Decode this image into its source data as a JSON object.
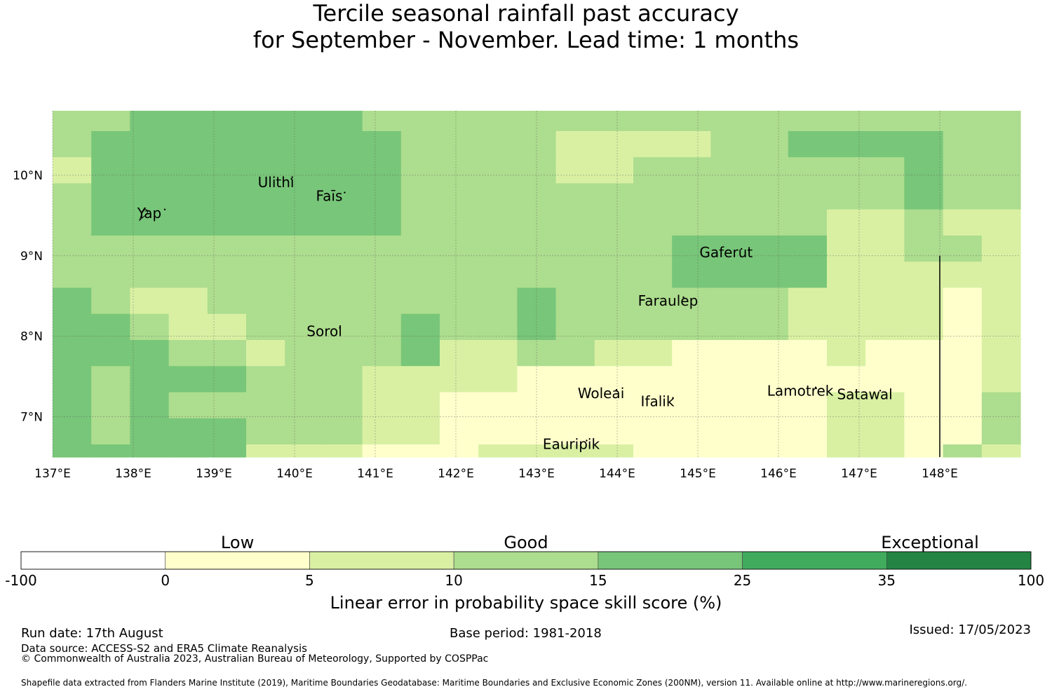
{
  "title": {
    "line1": "Tercile seasonal rainfall past accuracy",
    "line2": "for September - November. Lead time: 1 months"
  },
  "map": {
    "lon_range": [
      137,
      149
    ],
    "lat_range": [
      6.5,
      10.8
    ],
    "x_ticks": [
      {
        "value": 137,
        "label": "137°E"
      },
      {
        "value": 138,
        "label": "138°E"
      },
      {
        "value": 139,
        "label": "139°E"
      },
      {
        "value": 140,
        "label": "140°E"
      },
      {
        "value": 141,
        "label": "141°E"
      },
      {
        "value": 142,
        "label": "142°E"
      },
      {
        "value": 143,
        "label": "143°E"
      },
      {
        "value": 144,
        "label": "144°E"
      },
      {
        "value": 145,
        "label": "145°E"
      },
      {
        "value": 146,
        "label": "146°E"
      },
      {
        "value": 147,
        "label": "147°E"
      },
      {
        "value": 148,
        "label": "148°E"
      }
    ],
    "y_ticks": [
      {
        "value": 10,
        "label": "10°N"
      },
      {
        "value": 9,
        "label": "9°N"
      },
      {
        "value": 8,
        "label": "8°N"
      },
      {
        "value": 7,
        "label": "7°N"
      }
    ],
    "grid": true,
    "class_colors": [
      "#ffffcc",
      "#d9f0a3",
      "#addd8e",
      "#78c679"
    ],
    "grid_rows": [
      "2233333322222222222222222",
      "2333333332222111122333322",
      "1333333332222112222222322",
      "2333333332222222222222322",
      "2333333332222222222211211",
      "2222222222222222333311221",
      "2222222222222222333311111",
      "3211222222223222222111101",
      "3321122223223222222111101",
      "3332212223112211000010001",
      "3233322211110000000000001",
      "3232222211000000000011002",
      "3233322211000000000011002",
      "3333311100011110000011021"
    ],
    "places": [
      {
        "name": "Ulithi",
        "lon": 139.77,
        "lat": 9.85
      },
      {
        "name": "Faīs",
        "lon": 140.43,
        "lat": 9.68
      },
      {
        "name": "Yap",
        "lon": 138.2,
        "lat": 9.47
      },
      {
        "name": "Gaferut",
        "lon": 145.35,
        "lat": 8.98
      },
      {
        "name": "Faraulep",
        "lon": 144.63,
        "lat": 8.38
      },
      {
        "name": "Sorol",
        "lon": 140.37,
        "lat": 8.0
      },
      {
        "name": "Woleai",
        "lon": 143.8,
        "lat": 7.23
      },
      {
        "name": "Ifalik",
        "lon": 144.5,
        "lat": 7.13
      },
      {
        "name": "Lamotrek",
        "lon": 146.27,
        "lat": 7.26
      },
      {
        "name": "Satawal",
        "lon": 147.07,
        "lat": 7.22
      },
      {
        "name": "Eauripik",
        "lon": 143.43,
        "lat": 6.6
      }
    ]
  },
  "colorbar": {
    "segments": [
      {
        "label": "-100",
        "color": "#ffffff"
      },
      {
        "label": "0",
        "color": "#ffffcc"
      },
      {
        "label": "5",
        "color": "#d9f0a3"
      },
      {
        "label": "10",
        "color": "#addd8e"
      },
      {
        "label": "15",
        "color": "#78c679"
      },
      {
        "label": "25",
        "color": "#41ab5d"
      },
      {
        "label": "35",
        "color": "#238443"
      }
    ],
    "end_label": "100",
    "categories": [
      {
        "label": "Low",
        "segment_center": 1.5
      },
      {
        "label": "Good",
        "segment_center": 3.5
      },
      {
        "label": "Exceptional",
        "segment_center": 6.3
      }
    ],
    "title": "Linear error in probability space skill score (%)"
  },
  "footer": {
    "run_date": "Run date: 17th August",
    "data_source": "Data source: ACCESS-S2 and ERA5 Climate Reanalysis",
    "copyright": "© Commonwealth of Australia 2023, Australian Bureau of Meteorology, Supported by COSPPac",
    "base_period": "Base period: 1981-2018",
    "issued": "Issued: 17/05/2023",
    "shapefile": "Shapefile data extracted from Flanders Marine Institute (2019), Maritime Boundaries Geodatabase: Maritime Boundaries and Exclusive Economic Zones (200NM), version 11. Available online at http://www.marineregions.org/."
  }
}
